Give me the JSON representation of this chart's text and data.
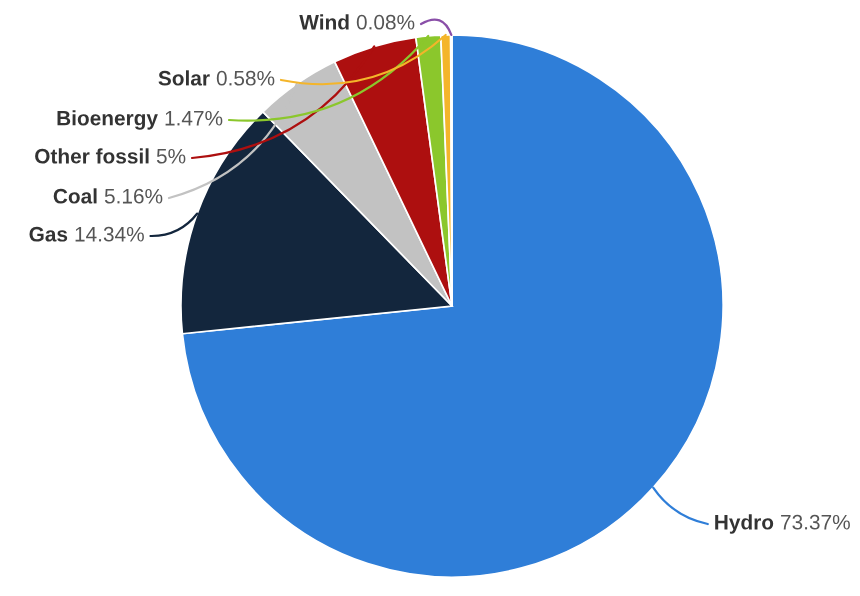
{
  "chart_data": {
    "type": "pie",
    "categories": [
      "Hydro",
      "Gas",
      "Coal",
      "Other fossil",
      "Bioenergy",
      "Solar",
      "Wind"
    ],
    "values": [
      73.37,
      14.34,
      5.16,
      5,
      1.47,
      0.58,
      0.08
    ],
    "colors": [
      "#2f7ed8",
      "#13263d",
      "#c2c2c2",
      "#ad0f0f",
      "#8bc72c",
      "#f4b52a",
      "#8a4fa8"
    ],
    "value_labels": [
      "73.37%",
      "14.34%",
      "5.16%",
      "5%",
      "1.47%",
      "0.58%",
      "0.08%"
    ]
  }
}
